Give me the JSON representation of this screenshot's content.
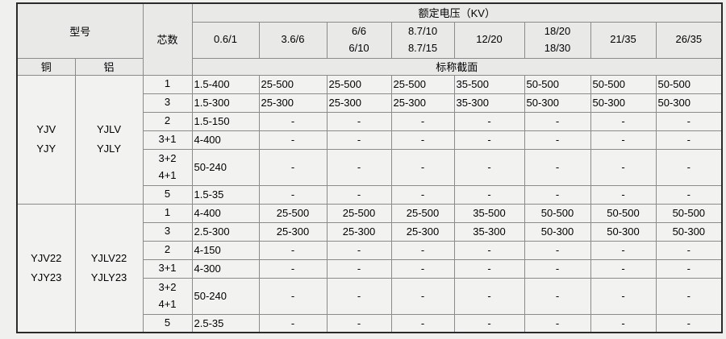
{
  "table": {
    "header": {
      "model": "型号",
      "cores": "芯数",
      "voltage": "额定电压（KV）",
      "copper": "铜",
      "aluminum": "铝",
      "section": "标称截面"
    },
    "voltages": [
      "0.6/1",
      "3.6/6",
      "6/6\n6/10",
      "8.7/10\n8.7/15",
      "12/20",
      "18/20\n18/30",
      "21/35",
      "26/35"
    ],
    "groups": [
      {
        "copper_models": "YJV\nYJY",
        "aluminum_models": "YJLV\nYJLY",
        "value_align": "left",
        "rows": [
          {
            "cores": "1",
            "values": [
              "1.5-400",
              "25-500",
              "25-500",
              "25-500",
              "35-500",
              "50-500",
              "50-500",
              "50-500"
            ]
          },
          {
            "cores": "3",
            "values": [
              "1.5-300",
              "25-300",
              "25-300",
              "25-300",
              "35-300",
              "50-300",
              "50-300",
              "50-300"
            ]
          },
          {
            "cores": "2",
            "values": [
              "1.5-150",
              "-",
              "-",
              "-",
              "-",
              "-",
              "-",
              "-"
            ]
          },
          {
            "cores": "3+1",
            "values": [
              "4-400",
              "-",
              "-",
              "-",
              "-",
              "-",
              "-",
              "-"
            ]
          },
          {
            "cores": "3+2\n4+1",
            "values": [
              "50-240",
              "-",
              "-",
              "-",
              "-",
              "-",
              "-",
              "-"
            ]
          },
          {
            "cores": "5",
            "values": [
              "1.5-35",
              "-",
              "-",
              "-",
              "-",
              "-",
              "-",
              "-"
            ]
          }
        ]
      },
      {
        "copper_models": "YJV22\nYJY23",
        "aluminum_models": "YJLV22\nYJLY23",
        "value_align": "center",
        "rows": [
          {
            "cores": "1",
            "values": [
              "4-400",
              "25-500",
              "25-500",
              "25-500",
              "35-500",
              "50-500",
              "50-500",
              "50-500"
            ]
          },
          {
            "cores": "3",
            "values": [
              "2.5-300",
              "25-300",
              "25-300",
              "25-300",
              "35-300",
              "50-300",
              "50-300",
              "50-300"
            ]
          },
          {
            "cores": "2",
            "values": [
              "4-150",
              "-",
              "-",
              "-",
              "-",
              "-",
              "-",
              "-"
            ]
          },
          {
            "cores": "3+1",
            "values": [
              "4-300",
              "-",
              "-",
              "-",
              "-",
              "-",
              "-",
              "-"
            ]
          },
          {
            "cores": "3+2\n4+1",
            "values": [
              "50-240",
              "-",
              "-",
              "-",
              "-",
              "-",
              "-",
              "-"
            ]
          },
          {
            "cores": "5",
            "values": [
              "2.5-35",
              "-",
              "-",
              "-",
              "-",
              "-",
              "-",
              "-"
            ]
          }
        ]
      }
    ],
    "colors": {
      "page_bg": "#f0f0ef",
      "header_bg": "#e9e9e8",
      "cell_bg": "#f2f2f1",
      "border_inner": "#8b8b8b",
      "border_outer": "#2b2b2b",
      "text": "#000000"
    }
  }
}
